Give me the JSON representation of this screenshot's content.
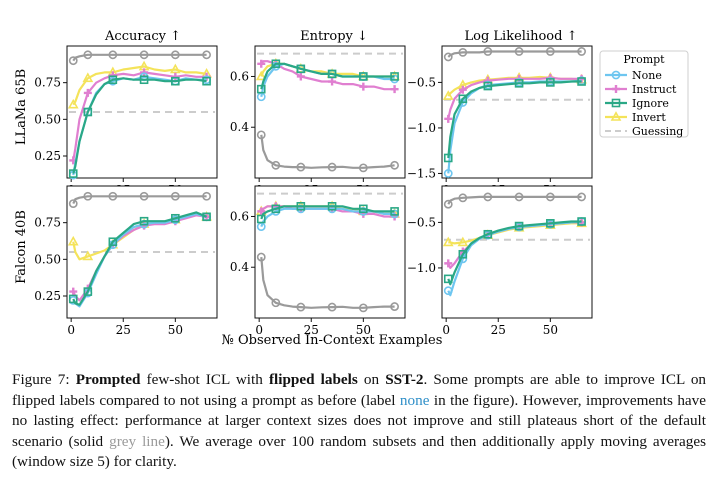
{
  "figure": {
    "xlabel": "№ Observed In-Context Examples",
    "column_titles": [
      "Accuracy ↑",
      "Entropy ↓",
      "Log Likelihood ↑"
    ],
    "row_labels": [
      "LLaMa 65B",
      "Falcon 40B"
    ],
    "legend_title": "Prompt",
    "legend_items": [
      "None",
      "Instruct",
      "Ignore",
      "Invert",
      "Guessing"
    ]
  },
  "colors": {
    "none": "#6ec6f0",
    "instruct": "#e07fd0",
    "ignore": "#2aa886",
    "invert": "#f4e35a",
    "default": "#9a9a9a",
    "guessing": "#cccccc"
  },
  "chart_data": [
    {
      "type": "line",
      "title": "Accuracy ↑",
      "row": "LLaMa 65B",
      "x": [
        1,
        2,
        4,
        8,
        12,
        16,
        20,
        25,
        30,
        35,
        40,
        45,
        50,
        55,
        60,
        65
      ],
      "ylim": [
        0.1,
        1.0
      ],
      "yticks": [
        "0.25",
        "0.50",
        "0.75"
      ],
      "xticks": [
        "0",
        "25",
        "50"
      ],
      "guessing": 0.55,
      "series": [
        {
          "name": "None",
          "values": [
            0.12,
            0.2,
            0.35,
            0.55,
            0.68,
            0.74,
            0.76,
            0.78,
            0.77,
            0.79,
            0.78,
            0.77,
            0.76,
            0.78,
            0.77,
            0.77
          ]
        },
        {
          "name": "Instruct",
          "values": [
            0.22,
            0.3,
            0.5,
            0.68,
            0.75,
            0.78,
            0.8,
            0.81,
            0.8,
            0.82,
            0.81,
            0.8,
            0.79,
            0.8,
            0.79,
            0.79
          ]
        },
        {
          "name": "Ignore",
          "values": [
            0.13,
            0.18,
            0.35,
            0.55,
            0.67,
            0.74,
            0.77,
            0.78,
            0.77,
            0.77,
            0.77,
            0.76,
            0.76,
            0.77,
            0.77,
            0.76
          ]
        },
        {
          "name": "Invert",
          "values": [
            0.6,
            0.62,
            0.7,
            0.78,
            0.81,
            0.82,
            0.82,
            0.84,
            0.85,
            0.86,
            0.84,
            0.83,
            0.84,
            0.82,
            0.82,
            0.81
          ]
        },
        {
          "name": "Default",
          "values": [
            0.9,
            0.92,
            0.93,
            0.94,
            0.94,
            0.94,
            0.94,
            0.94,
            0.94,
            0.94,
            0.94,
            0.94,
            0.94,
            0.94,
            0.94,
            0.94
          ]
        }
      ]
    },
    {
      "type": "line",
      "title": "Entropy ↓",
      "row": "LLaMa 65B",
      "x": [
        1,
        2,
        4,
        8,
        12,
        16,
        20,
        25,
        30,
        35,
        40,
        45,
        50,
        55,
        60,
        65
      ],
      "ylim": [
        0.2,
        0.72
      ],
      "yticks": [
        "0.4",
        "0.6"
      ],
      "xticks": [
        "0",
        "25",
        "50"
      ],
      "guessing": 0.69,
      "series": [
        {
          "name": "None",
          "values": [
            0.52,
            0.56,
            0.6,
            0.64,
            0.65,
            0.64,
            0.63,
            0.62,
            0.61,
            0.61,
            0.6,
            0.6,
            0.6,
            0.6,
            0.59,
            0.59
          ]
        },
        {
          "name": "Instruct",
          "values": [
            0.65,
            0.66,
            0.66,
            0.65,
            0.63,
            0.62,
            0.6,
            0.59,
            0.58,
            0.58,
            0.57,
            0.57,
            0.56,
            0.56,
            0.55,
            0.55
          ]
        },
        {
          "name": "Ignore",
          "values": [
            0.55,
            0.58,
            0.62,
            0.65,
            0.65,
            0.64,
            0.63,
            0.62,
            0.61,
            0.61,
            0.6,
            0.6,
            0.6,
            0.6,
            0.6,
            0.6
          ]
        },
        {
          "name": "Invert",
          "values": [
            0.6,
            0.62,
            0.64,
            0.65,
            0.65,
            0.64,
            0.63,
            0.62,
            0.62,
            0.61,
            0.61,
            0.61,
            0.6,
            0.6,
            0.6,
            0.6
          ]
        },
        {
          "name": "Default",
          "values": [
            0.37,
            0.31,
            0.27,
            0.25,
            0.245,
            0.243,
            0.243,
            0.24,
            0.242,
            0.243,
            0.244,
            0.24,
            0.24,
            0.243,
            0.245,
            0.25
          ]
        }
      ]
    },
    {
      "type": "line",
      "title": "Log Likelihood ↑",
      "row": "LLaMa 65B",
      "x": [
        1,
        2,
        4,
        8,
        12,
        16,
        20,
        25,
        30,
        35,
        40,
        45,
        50,
        55,
        60,
        65
      ],
      "ylim": [
        -1.55,
        -0.1
      ],
      "yticks": [
        "−0.5",
        "−1.0",
        "−1.5"
      ],
      "xticks": [
        "0",
        "25",
        "50"
      ],
      "guessing": -0.69,
      "series": [
        {
          "name": "None",
          "values": [
            -1.5,
            -1.25,
            -0.95,
            -0.72,
            -0.62,
            -0.56,
            -0.53,
            -0.52,
            -0.51,
            -0.5,
            -0.5,
            -0.49,
            -0.49,
            -0.49,
            -0.49,
            -0.48
          ]
        },
        {
          "name": "Instruct",
          "values": [
            -0.9,
            -0.8,
            -0.68,
            -0.58,
            -0.53,
            -0.5,
            -0.48,
            -0.47,
            -0.46,
            -0.46,
            -0.46,
            -0.46,
            -0.45,
            -0.46,
            -0.46,
            -0.46
          ]
        },
        {
          "name": "Ignore",
          "values": [
            -1.33,
            -1.1,
            -0.85,
            -0.68,
            -0.6,
            -0.56,
            -0.54,
            -0.53,
            -0.52,
            -0.51,
            -0.51,
            -0.5,
            -0.5,
            -0.5,
            -0.49,
            -0.49
          ]
        },
        {
          "name": "Invert",
          "values": [
            -0.65,
            -0.62,
            -0.58,
            -0.53,
            -0.5,
            -0.48,
            -0.47,
            -0.46,
            -0.45,
            -0.45,
            -0.45,
            -0.44,
            -0.45,
            -0.46,
            -0.46,
            -0.47
          ]
        },
        {
          "name": "Default",
          "values": [
            -0.22,
            -0.2,
            -0.18,
            -0.17,
            -0.17,
            -0.17,
            -0.16,
            -0.16,
            -0.16,
            -0.16,
            -0.16,
            -0.16,
            -0.16,
            -0.16,
            -0.16,
            -0.16
          ]
        }
      ]
    },
    {
      "type": "line",
      "title": "Accuracy ↑",
      "row": "Falcon 40B",
      "x": [
        1,
        2,
        4,
        8,
        12,
        16,
        20,
        25,
        30,
        35,
        40,
        45,
        50,
        55,
        60,
        65
      ],
      "ylim": [
        0.1,
        1.0
      ],
      "yticks": [
        "0.25",
        "0.50",
        "0.75"
      ],
      "xticks": [
        "0",
        "25",
        "50"
      ],
      "guessing": 0.55,
      "series": [
        {
          "name": "None",
          "values": [
            0.22,
            0.2,
            0.18,
            0.27,
            0.4,
            0.52,
            0.6,
            0.67,
            0.72,
            0.74,
            0.75,
            0.75,
            0.77,
            0.79,
            0.81,
            0.79
          ]
        },
        {
          "name": "Instruct",
          "values": [
            0.28,
            0.25,
            0.22,
            0.3,
            0.42,
            0.52,
            0.6,
            0.66,
            0.7,
            0.73,
            0.74,
            0.74,
            0.76,
            0.78,
            0.8,
            0.79
          ]
        },
        {
          "name": "Ignore",
          "values": [
            0.23,
            0.2,
            0.19,
            0.28,
            0.42,
            0.52,
            0.62,
            0.68,
            0.74,
            0.76,
            0.76,
            0.76,
            0.78,
            0.8,
            0.82,
            0.79
          ]
        },
        {
          "name": "Invert",
          "values": [
            0.62,
            0.55,
            0.5,
            0.52,
            0.54,
            0.56,
            0.6,
            0.65,
            0.7,
            0.74,
            0.75,
            0.75,
            0.77,
            0.79,
            0.81,
            0.79
          ]
        },
        {
          "name": "Default",
          "values": [
            0.88,
            0.91,
            0.92,
            0.93,
            0.93,
            0.93,
            0.93,
            0.93,
            0.93,
            0.93,
            0.93,
            0.93,
            0.93,
            0.93,
            0.93,
            0.93
          ]
        }
      ]
    },
    {
      "type": "line",
      "title": "Entropy ↓",
      "row": "Falcon 40B",
      "x": [
        1,
        2,
        4,
        8,
        12,
        16,
        20,
        25,
        30,
        35,
        40,
        45,
        50,
        55,
        60,
        65
      ],
      "ylim": [
        0.2,
        0.72
      ],
      "yticks": [
        "0.4",
        "0.6"
      ],
      "xticks": [
        "0",
        "25",
        "50"
      ],
      "guessing": 0.69,
      "series": [
        {
          "name": "None",
          "values": [
            0.56,
            0.58,
            0.6,
            0.62,
            0.63,
            0.63,
            0.63,
            0.63,
            0.63,
            0.63,
            0.63,
            0.62,
            0.62,
            0.62,
            0.61,
            0.61
          ]
        },
        {
          "name": "Instruct",
          "values": [
            0.62,
            0.63,
            0.64,
            0.64,
            0.64,
            0.63,
            0.63,
            0.63,
            0.63,
            0.63,
            0.62,
            0.62,
            0.61,
            0.61,
            0.6,
            0.6
          ]
        },
        {
          "name": "Ignore",
          "values": [
            0.59,
            0.61,
            0.62,
            0.63,
            0.64,
            0.64,
            0.64,
            0.64,
            0.64,
            0.64,
            0.64,
            0.63,
            0.63,
            0.62,
            0.62,
            0.62
          ]
        },
        {
          "name": "Invert",
          "values": [
            0.62,
            0.63,
            0.64,
            0.64,
            0.64,
            0.64,
            0.64,
            0.64,
            0.64,
            0.64,
            0.63,
            0.63,
            0.62,
            0.62,
            0.61,
            0.61
          ]
        },
        {
          "name": "Default",
          "values": [
            0.44,
            0.35,
            0.29,
            0.26,
            0.25,
            0.245,
            0.243,
            0.24,
            0.242,
            0.243,
            0.244,
            0.24,
            0.24,
            0.243,
            0.245,
            0.245
          ]
        }
      ]
    },
    {
      "type": "line",
      "title": "Log Likelihood ↑",
      "row": "Falcon 40B",
      "x": [
        1,
        2,
        4,
        8,
        12,
        16,
        20,
        25,
        30,
        35,
        40,
        45,
        50,
        55,
        60,
        65
      ],
      "ylim": [
        -1.55,
        -0.1
      ],
      "yticks": [
        "−0.5",
        "−1.0"
      ],
      "xticks": [
        "0",
        "25",
        "50"
      ],
      "guessing": -0.69,
      "series": [
        {
          "name": "None",
          "values": [
            -1.25,
            -1.3,
            -1.15,
            -0.9,
            -0.75,
            -0.68,
            -0.64,
            -0.6,
            -0.57,
            -0.55,
            -0.54,
            -0.53,
            -0.52,
            -0.51,
            -0.5,
            -0.49
          ]
        },
        {
          "name": "Instruct",
          "values": [
            -0.95,
            -1.0,
            -0.95,
            -0.82,
            -0.74,
            -0.68,
            -0.64,
            -0.6,
            -0.57,
            -0.55,
            -0.54,
            -0.53,
            -0.52,
            -0.51,
            -0.5,
            -0.5
          ]
        },
        {
          "name": "Ignore",
          "values": [
            -1.12,
            -1.18,
            -1.05,
            -0.85,
            -0.73,
            -0.67,
            -0.63,
            -0.59,
            -0.56,
            -0.54,
            -0.53,
            -0.52,
            -0.51,
            -0.5,
            -0.49,
            -0.49
          ]
        },
        {
          "name": "Invert",
          "values": [
            -0.72,
            -0.72,
            -0.73,
            -0.72,
            -0.7,
            -0.67,
            -0.64,
            -0.61,
            -0.58,
            -0.56,
            -0.55,
            -0.54,
            -0.53,
            -0.52,
            -0.51,
            -0.51
          ]
        },
        {
          "name": "Default",
          "values": [
            -0.3,
            -0.26,
            -0.24,
            -0.23,
            -0.225,
            -0.22,
            -0.22,
            -0.22,
            -0.22,
            -0.22,
            -0.22,
            -0.22,
            -0.22,
            -0.22,
            -0.22,
            -0.22
          ]
        }
      ]
    }
  ],
  "caption": {
    "label": "Figure 7: ",
    "b1": "Prompted",
    "t1": " few-shot ICL with ",
    "b2": "flipped labels",
    "t2": " on ",
    "b3": "SST-2",
    "t3": ". Some prompts are able to improve ICL on flipped labels compared to not using a prompt as before (label ",
    "none_word": "none",
    "t4": " in the figure). However, improvements have no lasting effect: performance at larger context sizes does not improve and still plateaus short of the default scenario (solid ",
    "grey_word": "grey line",
    "t5": "). We average over 100 random subsets and then additionally apply moving averages (window size 5) for clarity."
  }
}
